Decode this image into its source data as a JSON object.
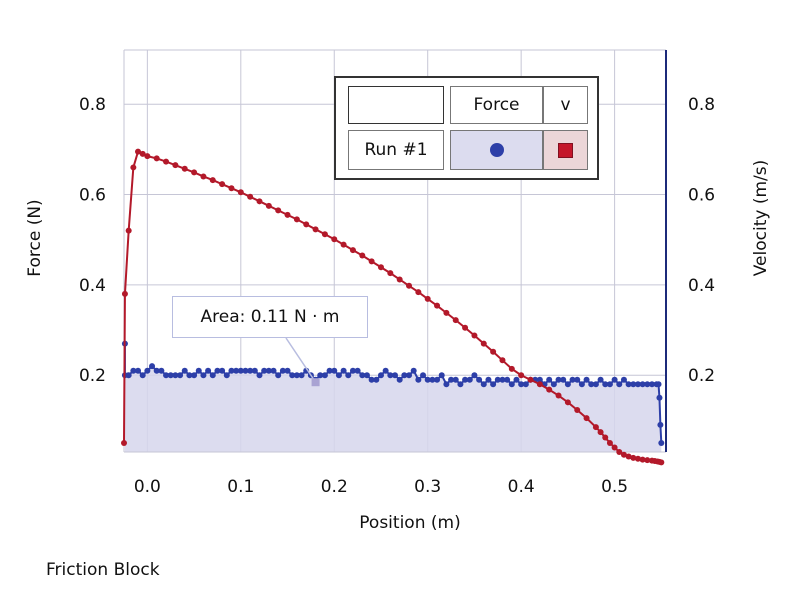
{
  "chart_data": {
    "type": "line",
    "xlabel": "Position (m)",
    "ylabel": "Force (N)",
    "y2label": "Velocity (m/s)",
    "xlim": [
      -0.025,
      0.555
    ],
    "ylim": [
      0.03,
      0.92
    ],
    "y2lim": [
      0.03,
      0.92
    ],
    "xticks": [
      "0.0",
      "0.1",
      "0.2",
      "0.3",
      "0.4",
      "0.5"
    ],
    "yticks": [
      "0.2",
      "0.4",
      "0.6",
      "0.8"
    ],
    "y2ticks": [
      "0.2",
      "0.4",
      "0.6",
      "0.8"
    ],
    "grid": true,
    "series": [
      {
        "name": "Force",
        "axis": "left",
        "color": "#2d3fa8",
        "marker": "circle",
        "fill_area": true,
        "x": [
          -0.024,
          -0.024,
          -0.02,
          -0.015,
          -0.01,
          -0.005,
          0.0,
          0.005,
          0.01,
          0.015,
          0.02,
          0.025,
          0.03,
          0.035,
          0.04,
          0.045,
          0.05,
          0.055,
          0.06,
          0.065,
          0.07,
          0.075,
          0.08,
          0.085,
          0.09,
          0.095,
          0.1,
          0.105,
          0.11,
          0.115,
          0.12,
          0.125,
          0.13,
          0.135,
          0.14,
          0.145,
          0.15,
          0.155,
          0.16,
          0.165,
          0.17,
          0.175,
          0.18,
          0.185,
          0.19,
          0.195,
          0.2,
          0.205,
          0.21,
          0.215,
          0.22,
          0.225,
          0.23,
          0.235,
          0.24,
          0.245,
          0.25,
          0.255,
          0.26,
          0.265,
          0.27,
          0.275,
          0.28,
          0.285,
          0.29,
          0.295,
          0.3,
          0.305,
          0.31,
          0.315,
          0.32,
          0.325,
          0.33,
          0.335,
          0.34,
          0.345,
          0.35,
          0.355,
          0.36,
          0.365,
          0.37,
          0.375,
          0.38,
          0.385,
          0.39,
          0.395,
          0.4,
          0.405,
          0.41,
          0.415,
          0.42,
          0.425,
          0.43,
          0.435,
          0.44,
          0.445,
          0.45,
          0.455,
          0.46,
          0.465,
          0.47,
          0.475,
          0.48,
          0.485,
          0.49,
          0.495,
          0.5,
          0.505,
          0.51,
          0.515,
          0.52,
          0.525,
          0.53,
          0.535,
          0.54,
          0.545,
          0.547,
          0.548,
          0.549,
          0.55
        ],
        "y": [
          0.27,
          0.2,
          0.2,
          0.21,
          0.21,
          0.2,
          0.21,
          0.22,
          0.21,
          0.21,
          0.2,
          0.2,
          0.2,
          0.2,
          0.21,
          0.2,
          0.2,
          0.21,
          0.2,
          0.21,
          0.2,
          0.21,
          0.21,
          0.2,
          0.21,
          0.21,
          0.21,
          0.21,
          0.21,
          0.21,
          0.2,
          0.21,
          0.21,
          0.21,
          0.2,
          0.21,
          0.21,
          0.2,
          0.2,
          0.2,
          0.21,
          0.2,
          0.19,
          0.2,
          0.2,
          0.21,
          0.21,
          0.2,
          0.21,
          0.2,
          0.21,
          0.21,
          0.2,
          0.2,
          0.19,
          0.19,
          0.2,
          0.21,
          0.2,
          0.2,
          0.19,
          0.2,
          0.2,
          0.21,
          0.19,
          0.2,
          0.19,
          0.19,
          0.19,
          0.2,
          0.18,
          0.19,
          0.19,
          0.18,
          0.19,
          0.19,
          0.2,
          0.19,
          0.18,
          0.19,
          0.18,
          0.19,
          0.19,
          0.19,
          0.18,
          0.19,
          0.18,
          0.18,
          0.19,
          0.19,
          0.19,
          0.18,
          0.19,
          0.18,
          0.19,
          0.19,
          0.18,
          0.19,
          0.19,
          0.18,
          0.19,
          0.18,
          0.18,
          0.19,
          0.18,
          0.18,
          0.19,
          0.18,
          0.19,
          0.18,
          0.18,
          0.18,
          0.18,
          0.18,
          0.18,
          0.18,
          0.18,
          0.15,
          0.09,
          0.05
        ]
      },
      {
        "name": "v",
        "axis": "right",
        "color": "#b3192a",
        "marker": "circle",
        "x": [
          -0.025,
          -0.024,
          -0.02,
          -0.015,
          -0.01,
          -0.005,
          0.0,
          0.01,
          0.02,
          0.03,
          0.04,
          0.05,
          0.06,
          0.07,
          0.08,
          0.09,
          0.1,
          0.11,
          0.12,
          0.13,
          0.14,
          0.15,
          0.16,
          0.17,
          0.18,
          0.19,
          0.2,
          0.21,
          0.22,
          0.23,
          0.24,
          0.25,
          0.26,
          0.27,
          0.28,
          0.29,
          0.3,
          0.31,
          0.32,
          0.33,
          0.34,
          0.35,
          0.36,
          0.37,
          0.38,
          0.39,
          0.4,
          0.41,
          0.42,
          0.43,
          0.44,
          0.45,
          0.46,
          0.47,
          0.48,
          0.485,
          0.49,
          0.495,
          0.5,
          0.505,
          0.51,
          0.515,
          0.52,
          0.525,
          0.53,
          0.535,
          0.54,
          0.543,
          0.546,
          0.548,
          0.55
        ],
        "y": [
          0.05,
          0.38,
          0.52,
          0.66,
          0.695,
          0.69,
          0.685,
          0.68,
          0.673,
          0.665,
          0.657,
          0.649,
          0.64,
          0.632,
          0.623,
          0.614,
          0.605,
          0.595,
          0.585,
          0.575,
          0.565,
          0.555,
          0.545,
          0.534,
          0.523,
          0.512,
          0.501,
          0.489,
          0.477,
          0.465,
          0.452,
          0.439,
          0.426,
          0.412,
          0.398,
          0.384,
          0.369,
          0.354,
          0.338,
          0.322,
          0.305,
          0.288,
          0.27,
          0.252,
          0.233,
          0.214,
          0.2,
          0.19,
          0.18,
          0.168,
          0.155,
          0.14,
          0.123,
          0.105,
          0.085,
          0.074,
          0.062,
          0.05,
          0.04,
          0.03,
          0.024,
          0.02,
          0.017,
          0.015,
          0.013,
          0.012,
          0.011,
          0.01,
          0.009,
          0.008,
          0.007
        ]
      }
    ],
    "legend": {
      "placement": "top-right",
      "header_blank": "",
      "col1": "Force",
      "col2": "v",
      "row_label": "Run #1"
    },
    "annotation": {
      "text": "Area: 0.11 N · m",
      "anchor_x": 0.18,
      "anchor_y": 0.2
    }
  },
  "footer": {
    "title": "Friction Block"
  }
}
